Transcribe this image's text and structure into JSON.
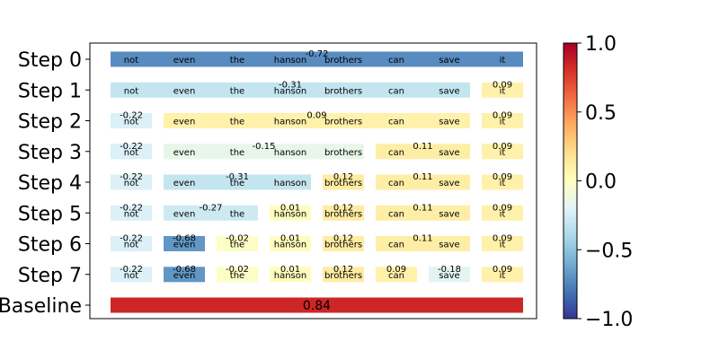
{
  "chart_data": {
    "type": "heatmap",
    "title": "",
    "xlabel": "",
    "ylabel": "",
    "tokens": [
      "not",
      "even",
      "the",
      "hanson",
      "brothers",
      "can",
      "save",
      "it"
    ],
    "rows": [
      {
        "label": "Step 0",
        "spans": [
          {
            "start": 0,
            "end": 7,
            "value": -0.72
          }
        ]
      },
      {
        "label": "Step 1",
        "spans": [
          {
            "start": 0,
            "end": 6,
            "value": -0.31
          },
          {
            "start": 7,
            "end": 7,
            "value": 0.09
          }
        ]
      },
      {
        "label": "Step 2",
        "spans": [
          {
            "start": 0,
            "end": 0,
            "value": -0.22
          },
          {
            "start": 1,
            "end": 6,
            "value": 0.09
          },
          {
            "start": 7,
            "end": 7,
            "value": 0.09
          }
        ]
      },
      {
        "label": "Step 3",
        "spans": [
          {
            "start": 0,
            "end": 0,
            "value": -0.22
          },
          {
            "start": 1,
            "end": 4,
            "value": -0.15
          },
          {
            "start": 5,
            "end": 6,
            "value": 0.11
          },
          {
            "start": 7,
            "end": 7,
            "value": 0.09
          }
        ]
      },
      {
        "label": "Step 4",
        "spans": [
          {
            "start": 0,
            "end": 0,
            "value": -0.22
          },
          {
            "start": 1,
            "end": 3,
            "value": -0.31
          },
          {
            "start": 4,
            "end": 4,
            "value": 0.12
          },
          {
            "start": 5,
            "end": 6,
            "value": 0.11
          },
          {
            "start": 7,
            "end": 7,
            "value": 0.09
          }
        ]
      },
      {
        "label": "Step 5",
        "spans": [
          {
            "start": 0,
            "end": 0,
            "value": -0.22
          },
          {
            "start": 1,
            "end": 2,
            "value": -0.27
          },
          {
            "start": 3,
            "end": 3,
            "value": 0.01
          },
          {
            "start": 4,
            "end": 4,
            "value": 0.12
          },
          {
            "start": 5,
            "end": 6,
            "value": 0.11
          },
          {
            "start": 7,
            "end": 7,
            "value": 0.09
          }
        ]
      },
      {
        "label": "Step 6",
        "spans": [
          {
            "start": 0,
            "end": 0,
            "value": -0.22
          },
          {
            "start": 1,
            "end": 1,
            "value": -0.68
          },
          {
            "start": 2,
            "end": 2,
            "value": -0.02
          },
          {
            "start": 3,
            "end": 3,
            "value": 0.01
          },
          {
            "start": 4,
            "end": 4,
            "value": 0.12
          },
          {
            "start": 5,
            "end": 6,
            "value": 0.11
          },
          {
            "start": 7,
            "end": 7,
            "value": 0.09
          }
        ]
      },
      {
        "label": "Step 7",
        "spans": [
          {
            "start": 0,
            "end": 0,
            "value": -0.22
          },
          {
            "start": 1,
            "end": 1,
            "value": -0.68
          },
          {
            "start": 2,
            "end": 2,
            "value": -0.02
          },
          {
            "start": 3,
            "end": 3,
            "value": 0.01
          },
          {
            "start": 4,
            "end": 4,
            "value": 0.12
          },
          {
            "start": 5,
            "end": 5,
            "value": 0.09
          },
          {
            "start": 6,
            "end": 6,
            "value": -0.18
          },
          {
            "start": 7,
            "end": 7,
            "value": 0.09
          }
        ]
      }
    ],
    "baseline": {
      "label": "Baseline",
      "value": 0.84
    },
    "colorbar": {
      "colormap": "RdYlBu_r",
      "range": [
        -1.0,
        1.0
      ],
      "ticks": [
        "1.0",
        "0.5",
        "0.0",
        "−0.5",
        "−1.0"
      ],
      "tick_values": [
        1.0,
        0.5,
        0.0,
        -0.5,
        -1.0
      ]
    },
    "grid": false
  }
}
